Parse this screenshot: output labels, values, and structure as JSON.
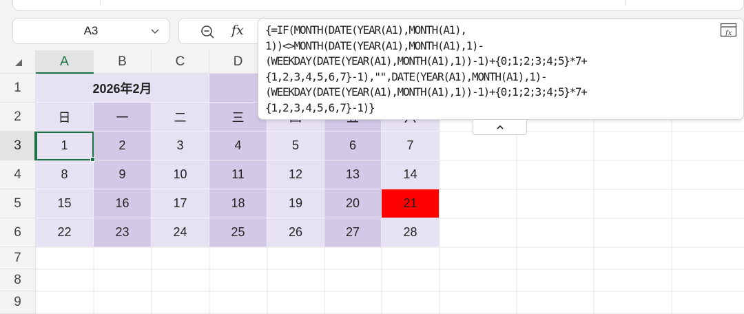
{
  "name_box": {
    "value": "A3"
  },
  "formula_bar": {
    "fx_label": "fx",
    "lines": [
      "{=IF(MONTH(DATE(YEAR(A1),MONTH(A1),",
      "1))<>MONTH(DATE(YEAR(A1),MONTH(A1),1)-",
      "(WEEKDAY(DATE(YEAR(A1),MONTH(A1),1))-1)+{0;1;2;3;4;5}*7+",
      "{1,2,3,4,5,6,7}-1),\"\",DATE(YEAR(A1),MONTH(A1),1)-",
      "(WEEKDAY(DATE(YEAR(A1),MONTH(A1),1))-1)+{0;1;2;3;4;5}*7+",
      "{1,2,3,4,5,6,7}-1)}"
    ]
  },
  "columns": [
    "A",
    "B",
    "C",
    "D"
  ],
  "rows": [
    "1",
    "2",
    "3",
    "4",
    "5",
    "6",
    "7",
    "8",
    "9"
  ],
  "calendar": {
    "title": "2026年2月",
    "weekdays": [
      "日",
      "一",
      "二",
      "三",
      "四",
      "五",
      "六"
    ],
    "weeks": [
      [
        "1",
        "2",
        "3",
        "4",
        "5",
        "6",
        "7"
      ],
      [
        "8",
        "9",
        "10",
        "11",
        "12",
        "13",
        "14"
      ],
      [
        "15",
        "16",
        "17",
        "18",
        "19",
        "20",
        "21"
      ],
      [
        "22",
        "23",
        "24",
        "25",
        "26",
        "27",
        "28"
      ]
    ]
  },
  "colors": {
    "light_band": "#e6e1f3",
    "dark_band": "#d2c9e7",
    "highlight": "#ff0000",
    "selection": "#1e7145"
  },
  "icons": {
    "name_box_dropdown": "chevron-down-icon",
    "zoom": "zoom-icon",
    "formula_expand": "fx-expand-icon",
    "collapse": "chevron-up-icon"
  }
}
